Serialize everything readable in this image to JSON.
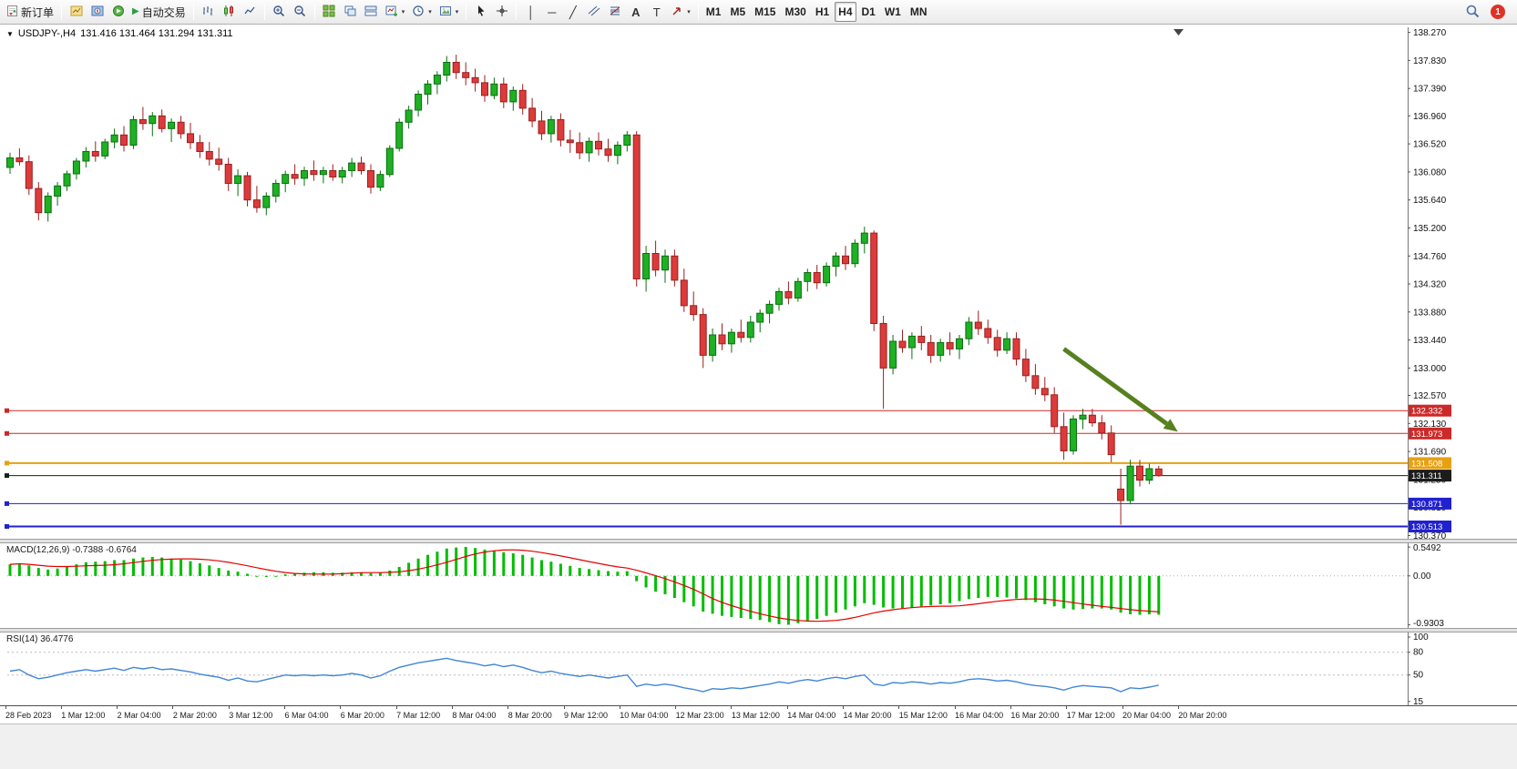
{
  "toolbar": {
    "new_order_label": "新订单",
    "autotrading_label": "自动交易",
    "timeframes": [
      "M1",
      "M5",
      "M15",
      "M30",
      "H1",
      "H4",
      "D1",
      "W1",
      "MN"
    ],
    "active_timeframe": "H4",
    "notification_count": "1"
  },
  "icons": {
    "menu_triangle": "▼",
    "caret": "▾",
    "play": "▶",
    "vertical_line": "│",
    "horizontal_line": "─",
    "trendline": "╱",
    "text_tool": "A",
    "label_tool": "T"
  },
  "chart_data": {
    "type": "candlestick",
    "title": "USDJPY-,H4",
    "ohlc_text": "131.416 131.464 131.294 131.311",
    "ohlc": {
      "open": 131.416,
      "high": 131.464,
      "low": 131.294,
      "close": 131.311
    },
    "colors": {
      "bull": "#1fb024",
      "bull_border": "#0b6f10",
      "bear": "#dc3b3b",
      "bear_border": "#9c1f1f",
      "macd": "#00bd00",
      "signal": "#e60000",
      "rsi": "#4286d6"
    },
    "price_axis": {
      "tick_labels": [
        "138.270",
        "137.830",
        "137.390",
        "136.960",
        "136.520",
        "136.080",
        "135.640",
        "135.200",
        "134.760",
        "134.320",
        "133.880",
        "133.440",
        "133.000",
        "132.570",
        "132.130",
        "131.690",
        "131.250",
        "130.810",
        "130.370"
      ]
    },
    "time_axis": {
      "labels": [
        "28 Feb 2023",
        "1 Mar 12:00",
        "2 Mar 04:00",
        "2 Mar 20:00",
        "3 Mar 12:00",
        "6 Mar 04:00",
        "6 Mar 20:00",
        "7 Mar 12:00",
        "8 Mar 04:00",
        "8 Mar 20:00",
        "9 Mar 12:00",
        "10 Mar 04:00",
        "12 Mar 23:00",
        "13 Mar 12:00",
        "14 Mar 04:00",
        "14 Mar 20:00",
        "15 Mar 12:00",
        "16 Mar 04:00",
        "16 Mar 20:00",
        "17 Mar 12:00",
        "20 Mar 04:00",
        "20 Mar 20:00"
      ]
    },
    "levels": [
      {
        "price": 132.332,
        "label": "132.332",
        "color": "#cc2929",
        "width": 1
      },
      {
        "price": 131.973,
        "label": "131.973",
        "color": "#cc2929",
        "width": 1
      },
      {
        "price": 131.508,
        "label": "131.508",
        "color": "#e8a013",
        "width": 2
      },
      {
        "price": 131.311,
        "label": "131.311",
        "color": "#1c1c1c",
        "width": 1
      },
      {
        "price": 130.871,
        "label": "130.871",
        "color": "#2121cf",
        "width": 1
      },
      {
        "price": 130.513,
        "label": "130.513",
        "color": "#2121cf",
        "width": 2
      }
    ],
    "annotations": [
      {
        "type": "trend-arrow",
        "color": "#57801f",
        "from": {
          "candle": 111,
          "price": 133.3
        },
        "to": {
          "candle": 123,
          "price": 132.0
        }
      }
    ],
    "candles": [
      [
        136.15,
        136.38,
        136.05,
        136.3
      ],
      [
        136.3,
        136.45,
        136.18,
        136.24
      ],
      [
        136.24,
        136.34,
        135.72,
        135.82
      ],
      [
        135.82,
        135.92,
        135.32,
        135.44
      ],
      [
        135.44,
        135.76,
        135.3,
        135.7
      ],
      [
        135.7,
        135.92,
        135.55,
        135.86
      ],
      [
        135.86,
        136.1,
        135.78,
        136.05
      ],
      [
        136.05,
        136.3,
        135.96,
        136.25
      ],
      [
        136.25,
        136.47,
        136.15,
        136.4
      ],
      [
        136.4,
        136.56,
        136.24,
        136.33
      ],
      [
        136.33,
        136.6,
        136.28,
        136.55
      ],
      [
        136.55,
        136.76,
        136.45,
        136.66
      ],
      [
        136.66,
        136.8,
        136.4,
        136.5
      ],
      [
        136.5,
        136.96,
        136.44,
        136.9
      ],
      [
        136.9,
        137.1,
        136.74,
        136.84
      ],
      [
        136.84,
        137.02,
        136.64,
        136.96
      ],
      [
        136.96,
        137.06,
        136.7,
        136.76
      ],
      [
        136.76,
        136.92,
        136.55,
        136.86
      ],
      [
        136.86,
        136.96,
        136.6,
        136.68
      ],
      [
        136.68,
        136.85,
        136.44,
        136.54
      ],
      [
        136.54,
        136.66,
        136.3,
        136.4
      ],
      [
        136.4,
        136.55,
        136.18,
        136.28
      ],
      [
        136.28,
        136.46,
        136.1,
        136.2
      ],
      [
        136.2,
        136.3,
        135.78,
        135.9
      ],
      [
        135.9,
        136.12,
        135.7,
        136.02
      ],
      [
        136.02,
        136.08,
        135.54,
        135.64
      ],
      [
        135.64,
        135.86,
        135.44,
        135.52
      ],
      [
        135.52,
        135.76,
        135.4,
        135.7
      ],
      [
        135.7,
        135.96,
        135.6,
        135.9
      ],
      [
        135.9,
        136.1,
        135.76,
        136.04
      ],
      [
        136.04,
        136.2,
        135.88,
        135.98
      ],
      [
        135.98,
        136.16,
        135.86,
        136.1
      ],
      [
        136.1,
        136.26,
        135.94,
        136.04
      ],
      [
        136.04,
        136.16,
        135.9,
        136.1
      ],
      [
        136.1,
        136.2,
        135.94,
        136.0
      ],
      [
        136.0,
        136.16,
        135.9,
        136.1
      ],
      [
        136.1,
        136.3,
        136.0,
        136.22
      ],
      [
        136.22,
        136.32,
        136.04,
        136.1
      ],
      [
        136.1,
        136.2,
        135.74,
        135.84
      ],
      [
        135.84,
        136.1,
        135.78,
        136.04
      ],
      [
        136.04,
        136.5,
        136.0,
        136.45
      ],
      [
        136.45,
        136.92,
        136.4,
        136.86
      ],
      [
        136.86,
        137.12,
        136.76,
        137.05
      ],
      [
        137.05,
        137.36,
        136.95,
        137.3
      ],
      [
        137.3,
        137.52,
        137.14,
        137.46
      ],
      [
        137.46,
        137.66,
        137.3,
        137.6
      ],
      [
        137.6,
        137.9,
        137.5,
        137.8
      ],
      [
        137.8,
        137.92,
        137.54,
        137.64
      ],
      [
        137.64,
        137.8,
        137.44,
        137.56
      ],
      [
        137.56,
        137.7,
        137.34,
        137.48
      ],
      [
        137.48,
        137.6,
        137.18,
        137.28
      ],
      [
        137.28,
        137.56,
        137.22,
        137.46
      ],
      [
        137.46,
        137.56,
        137.08,
        137.18
      ],
      [
        137.18,
        137.42,
        137.04,
        137.36
      ],
      [
        137.36,
        137.46,
        136.98,
        137.08
      ],
      [
        137.08,
        137.24,
        136.78,
        136.88
      ],
      [
        136.88,
        137.04,
        136.58,
        136.68
      ],
      [
        136.68,
        136.96,
        136.54,
        136.9
      ],
      [
        136.9,
        137.0,
        136.48,
        136.58
      ],
      [
        136.58,
        136.74,
        136.38,
        136.54
      ],
      [
        136.54,
        136.7,
        136.28,
        136.38
      ],
      [
        136.38,
        136.62,
        136.24,
        136.56
      ],
      [
        136.56,
        136.7,
        136.34,
        136.44
      ],
      [
        136.44,
        136.6,
        136.24,
        136.34
      ],
      [
        136.34,
        136.56,
        136.2,
        136.5
      ],
      [
        136.5,
        136.72,
        136.4,
        136.66
      ],
      [
        136.66,
        136.72,
        134.28,
        134.4
      ],
      [
        134.4,
        134.92,
        134.2,
        134.8
      ],
      [
        134.8,
        135.0,
        134.44,
        134.54
      ],
      [
        134.54,
        134.86,
        134.34,
        134.76
      ],
      [
        134.76,
        134.86,
        134.28,
        134.38
      ],
      [
        134.38,
        134.56,
        133.88,
        133.98
      ],
      [
        133.98,
        134.2,
        133.74,
        133.84
      ],
      [
        133.84,
        133.94,
        133.0,
        133.2
      ],
      [
        133.2,
        133.62,
        133.1,
        133.52
      ],
      [
        133.52,
        133.7,
        133.28,
        133.38
      ],
      [
        133.38,
        133.62,
        133.24,
        133.56
      ],
      [
        133.56,
        133.76,
        133.4,
        133.48
      ],
      [
        133.48,
        133.82,
        133.4,
        133.72
      ],
      [
        133.72,
        133.92,
        133.56,
        133.86
      ],
      [
        133.86,
        134.06,
        133.7,
        134.0
      ],
      [
        134.0,
        134.26,
        133.9,
        134.2
      ],
      [
        134.2,
        134.36,
        134.0,
        134.1
      ],
      [
        134.1,
        134.42,
        134.04,
        134.36
      ],
      [
        134.36,
        134.56,
        134.2,
        134.5
      ],
      [
        134.5,
        134.62,
        134.24,
        134.34
      ],
      [
        134.34,
        134.66,
        134.28,
        134.6
      ],
      [
        134.6,
        134.82,
        134.44,
        134.76
      ],
      [
        134.76,
        134.92,
        134.54,
        134.64
      ],
      [
        134.64,
        135.02,
        134.58,
        134.96
      ],
      [
        134.96,
        135.22,
        134.8,
        135.12
      ],
      [
        135.12,
        135.16,
        133.58,
        133.7
      ],
      [
        133.7,
        133.82,
        132.36,
        133.0
      ],
      [
        133.0,
        133.52,
        132.9,
        133.42
      ],
      [
        133.42,
        133.6,
        133.24,
        133.32
      ],
      [
        133.32,
        133.56,
        133.14,
        133.5
      ],
      [
        133.5,
        133.66,
        133.28,
        133.4
      ],
      [
        133.4,
        133.52,
        133.08,
        133.2
      ],
      [
        133.2,
        133.46,
        133.1,
        133.4
      ],
      [
        133.4,
        133.56,
        133.2,
        133.3
      ],
      [
        133.3,
        133.52,
        133.14,
        133.46
      ],
      [
        133.46,
        133.8,
        133.36,
        133.72
      ],
      [
        133.72,
        133.9,
        133.52,
        133.62
      ],
      [
        133.62,
        133.76,
        133.38,
        133.48
      ],
      [
        133.48,
        133.6,
        133.18,
        133.28
      ],
      [
        133.28,
        133.56,
        133.22,
        133.46
      ],
      [
        133.46,
        133.56,
        133.04,
        133.14
      ],
      [
        133.14,
        133.3,
        132.78,
        132.88
      ],
      [
        132.88,
        133.06,
        132.58,
        132.68
      ],
      [
        132.68,
        132.86,
        132.48,
        132.58
      ],
      [
        132.58,
        132.7,
        131.98,
        132.08
      ],
      [
        132.08,
        132.3,
        131.56,
        131.7
      ],
      [
        131.7,
        132.26,
        131.64,
        132.2
      ],
      [
        132.2,
        132.36,
        132.04,
        132.26
      ],
      [
        132.26,
        132.36,
        132.08,
        132.14
      ],
      [
        132.14,
        132.26,
        131.88,
        131.98
      ],
      [
        131.98,
        132.1,
        131.52,
        131.64
      ],
      [
        131.1,
        131.42,
        130.54,
        130.92
      ],
      [
        130.92,
        131.56,
        130.86,
        131.46
      ],
      [
        131.46,
        131.56,
        131.14,
        131.24
      ],
      [
        131.24,
        131.5,
        131.18,
        131.42
      ],
      [
        131.416,
        131.464,
        131.294,
        131.311
      ]
    ],
    "macd": {
      "label": "MACD(12,26,9)",
      "values_text": "-0.7388 -0.6764",
      "current_macd": -0.7388,
      "current_signal": -0.6764,
      "scale_ticks": [
        {
          "value": 0.5492,
          "label": "0.5492"
        },
        {
          "value": 0,
          "label": "0.00"
        },
        {
          "value": -0.9303,
          "label": "-0.9303"
        }
      ],
      "histogram": [
        0.22,
        0.24,
        0.2,
        0.15,
        0.12,
        0.14,
        0.18,
        0.22,
        0.26,
        0.27,
        0.28,
        0.3,
        0.3,
        0.33,
        0.35,
        0.36,
        0.35,
        0.33,
        0.31,
        0.28,
        0.24,
        0.2,
        0.15,
        0.1,
        0.08,
        0.04,
        0.0,
        -0.02,
        0.0,
        0.03,
        0.05,
        0.06,
        0.07,
        0.07,
        0.06,
        0.06,
        0.07,
        0.07,
        0.05,
        0.06,
        0.1,
        0.17,
        0.25,
        0.33,
        0.4,
        0.46,
        0.52,
        0.54,
        0.55,
        0.53,
        0.5,
        0.48,
        0.45,
        0.43,
        0.4,
        0.35,
        0.3,
        0.27,
        0.23,
        0.19,
        0.15,
        0.13,
        0.11,
        0.09,
        0.08,
        0.09,
        -0.1,
        -0.22,
        -0.3,
        -0.35,
        -0.42,
        -0.5,
        -0.58,
        -0.68,
        -0.72,
        -0.76,
        -0.78,
        -0.8,
        -0.82,
        -0.84,
        -0.88,
        -0.92,
        -0.93,
        -0.9,
        -0.86,
        -0.82,
        -0.76,
        -0.7,
        -0.64,
        -0.58,
        -0.52,
        -0.55,
        -0.6,
        -0.62,
        -0.62,
        -0.6,
        -0.58,
        -0.56,
        -0.54,
        -0.52,
        -0.48,
        -0.44,
        -0.42,
        -0.4,
        -0.4,
        -0.41,
        -0.43,
        -0.46,
        -0.5,
        -0.54,
        -0.58,
        -0.62,
        -0.64,
        -0.63,
        -0.62,
        -0.62,
        -0.64,
        -0.7,
        -0.73,
        -0.74,
        -0.73,
        -0.7388
      ]
    },
    "rsi": {
      "label": "RSI(14)",
      "current": "36.4776",
      "scale_ticks": [
        {
          "value": 100,
          "label": "100"
        },
        {
          "value": 80,
          "label": "80"
        },
        {
          "value": 50,
          "label": "50"
        },
        {
          "value": 15,
          "label": "15"
        }
      ],
      "values": [
        55,
        57,
        50,
        45,
        47,
        50,
        53,
        55,
        57,
        55,
        57,
        59,
        56,
        60,
        58,
        60,
        57,
        58,
        56,
        54,
        51,
        49,
        47,
        43,
        46,
        42,
        41,
        44,
        47,
        50,
        49,
        50,
        49,
        50,
        49,
        50,
        52,
        50,
        46,
        49,
        55,
        60,
        63,
        66,
        68,
        70,
        72,
        69,
        67,
        65,
        62,
        64,
        61,
        63,
        60,
        56,
        53,
        55,
        52,
        50,
        48,
        50,
        48,
        46,
        48,
        50,
        35,
        38,
        36,
        38,
        36,
        33,
        31,
        28,
        32,
        31,
        33,
        32,
        34,
        36,
        38,
        41,
        39,
        42,
        44,
        42,
        45,
        47,
        45,
        48,
        50,
        38,
        36,
        40,
        39,
        41,
        40,
        38,
        40,
        39,
        41,
        44,
        45,
        44,
        42,
        43,
        41,
        38,
        36,
        35,
        33,
        30,
        34,
        36,
        35,
        34,
        33,
        28,
        33,
        32,
        34,
        36.4776
      ]
    }
  }
}
